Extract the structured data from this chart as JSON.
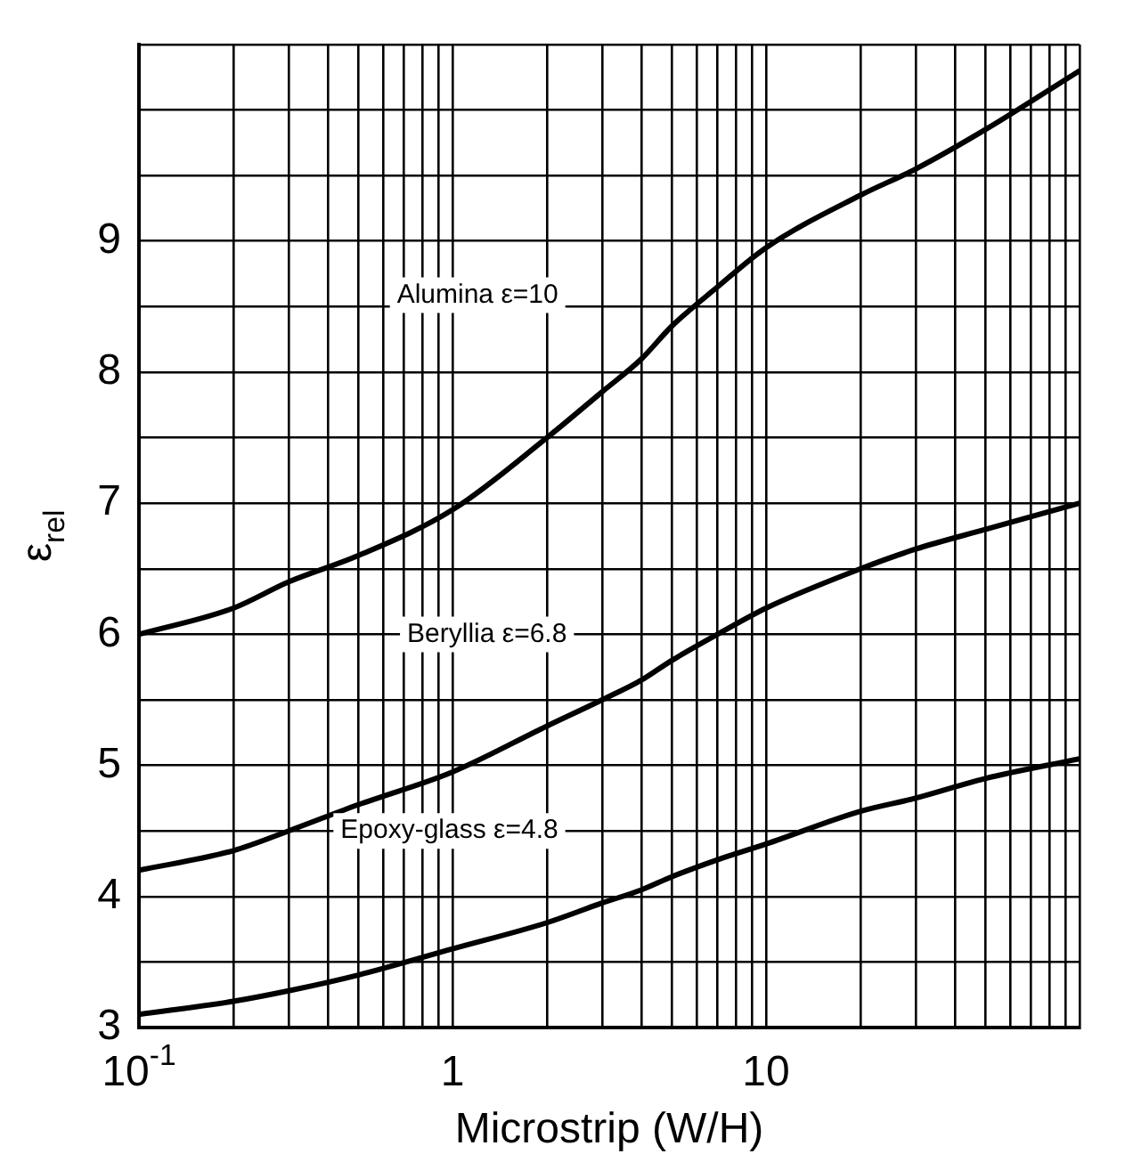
{
  "chart_data": {
    "type": "line",
    "xlabel": "Microstrip (W/H)",
    "ylabel": "ε$_{rel}$",
    "log": "x",
    "grid": true,
    "legend": false,
    "marker": "none",
    "line_style": "solid",
    "xlim": [
      0.1,
      100
    ],
    "ylim": [
      3,
      10.5
    ],
    "xticks": [
      {
        "value": 0.1,
        "label": "10$^{-1}$"
      },
      {
        "value": 0.2,
        "label": null
      },
      {
        "value": 0.3,
        "label": null
      },
      {
        "value": 0.4,
        "label": null
      },
      {
        "value": 0.5,
        "label": null
      },
      {
        "value": 0.6,
        "label": null
      },
      {
        "value": 0.7,
        "label": null
      },
      {
        "value": 0.8,
        "label": null
      },
      {
        "value": 0.9,
        "label": null
      },
      1,
      {
        "value": 2,
        "label": null
      },
      {
        "value": 3,
        "label": null
      },
      {
        "value": 4,
        "label": null
      },
      {
        "value": 5,
        "label": null
      },
      {
        "value": 6,
        "label": null
      },
      {
        "value": 7,
        "label": null
      },
      {
        "value": 8,
        "label": null
      },
      {
        "value": 9,
        "label": null
      },
      10,
      {
        "value": 20,
        "label": null
      },
      {
        "value": 30,
        "label": null
      },
      {
        "value": 40,
        "label": null
      },
      {
        "value": 50,
        "label": null
      },
      {
        "value": 60,
        "label": null
      },
      {
        "value": 70,
        "label": null
      },
      {
        "value": 80,
        "label": null
      },
      {
        "value": 90,
        "label": null
      },
      {
        "value": 100,
        "label": null
      }
    ],
    "yticks": [
      3,
      {
        "value": 3.5,
        "label": null
      },
      4,
      {
        "value": 4.5,
        "label": null
      },
      5,
      {
        "value": 5.5,
        "label": null
      },
      6,
      {
        "value": 6.5,
        "label": null
      },
      7,
      {
        "value": 7.5,
        "label": null
      },
      8,
      {
        "value": 8.5,
        "label": null
      },
      9,
      {
        "value": 9.5,
        "label": null
      },
      {
        "value": 10,
        "label": null
      },
      {
        "value": 10.5,
        "label": null
      }
    ],
    "x": [
      0.1,
      0.2,
      0.3,
      0.5,
      1,
      2,
      3,
      4,
      5,
      7,
      10,
      20,
      30,
      50,
      100
    ],
    "series": [
      {
        "color": "#000000",
        "values": [
          6.0,
          6.2,
          6.4,
          6.6,
          6.95,
          7.5,
          7.85,
          8.1,
          8.35,
          8.65,
          8.95,
          9.35,
          9.55,
          9.85,
          10.3
        ]
      },
      {
        "color": "#000000",
        "values": [
          4.2,
          4.35,
          4.5,
          4.7,
          4.95,
          5.3,
          5.5,
          5.65,
          5.8,
          6.0,
          6.2,
          6.5,
          6.65,
          6.8,
          7.0
        ]
      },
      {
        "color": "#000000",
        "values": [
          3.1,
          3.2,
          3.28,
          3.4,
          3.6,
          3.8,
          3.95,
          4.05,
          4.15,
          4.28,
          4.4,
          4.65,
          4.75,
          4.9,
          5.05
        ]
      }
    ],
    "annotations": [
      "Alumina ε=10",
      "Beryllia ε=6.8",
      "Epoxy-glass ε=4.8"
    ]
  }
}
